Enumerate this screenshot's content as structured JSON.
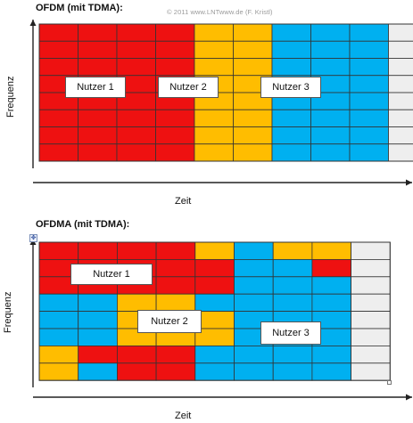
{
  "colors": {
    "red": "#ee1111",
    "orange": "#ffbd00",
    "blue": "#00b0f0",
    "empty": "#eeeeee",
    "grid": "#333333",
    "axis": "#222222"
  },
  "copyright": "© 2011 www.LNTwww.de (F. Kristl)",
  "diagrams": [
    {
      "title": "OFDM (mit TDMA):",
      "xlabel": "Zeit",
      "ylabel": "Frequenz",
      "grid": [
        "RRRRRRRROOOOBBBBBBE",
        "RRRRRRRROOOOBBBBBBE"
      ],
      "users": [
        {
          "name": "Nutzer 1"
        },
        {
          "name": "Nutzer 2"
        },
        {
          "name": "Nutzer 3"
        }
      ]
    },
    {
      "title": "OFDMA (mit TDMA):",
      "xlabel": "Zeit",
      "ylabel": "Frequenz",
      "grid": [],
      "users": [
        {
          "name": "Nutzer 1"
        },
        {
          "name": "Nutzer 2"
        },
        {
          "name": "Nutzer 3"
        }
      ]
    }
  ],
  "grids": {
    "ofdm": [
      "RRRROOBBBE",
      "RRRROOBBBE",
      "RRRROOBBBE",
      "RRRROOBBBE",
      "RRRROOBBBE",
      "RRRROOBBBE",
      "RRRROOBBBE",
      "RRRROOBBBE"
    ],
    "ofdma": [
      "RRRROBOOE",
      "RRRRRBBRE",
      "RRRRRBBBE",
      "BBOOBBBBE",
      "BBOOOBBBE",
      "BBOOOBBBE",
      "ORRRBBBBE",
      "OBRRBBBBE"
    ]
  }
}
